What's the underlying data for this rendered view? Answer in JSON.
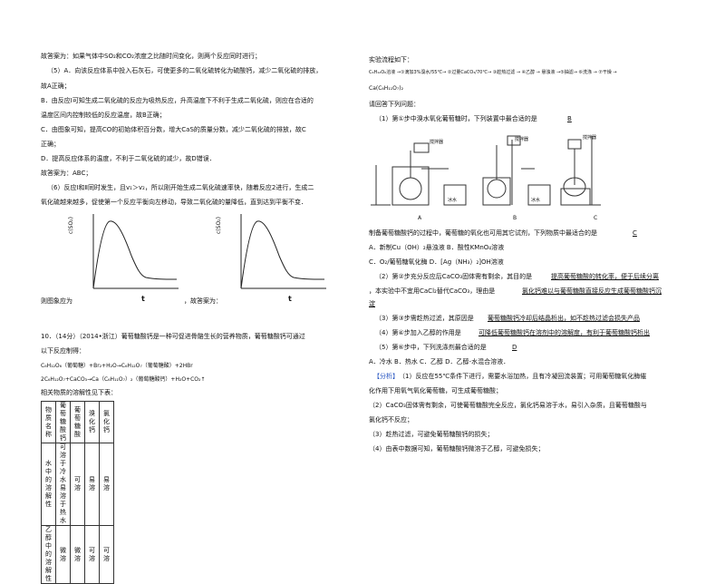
{
  "left": {
    "l1": "故答案为：如果气体中SO₂和CO₂浓度之比随时间变化，则两个反应同时进行；",
    "l2": "（5）A．向该反应体系中投入石灰石，可使更多的二氧化硫转化为硫酸钙，减少二氧化硫的排放，",
    "l3": "故A正确；",
    "l4": "B．由反应Ⅰ可知生成二氧化硫的反应为吸热反应，升高温度下不利于生成二氧化硫，则应在合适的",
    "l5": "温度区间内控制较低的反应温度，故B正确；",
    "l6": "C．由图象可知，提高CO的初始体积百分数，增大CaS的质量分数，减少二氧化硫的排放，故C",
    "l7": "正确；",
    "l8": "D．提高反应体系的温度，不利于二氧化硫的减少，故D错误．",
    "l9": "故答案为：ABC；",
    "l10": "（6）反应Ⅰ和Ⅱ同时发生，且v₁＞v₂，所以刚开始生成二氧化硫速率快，随着反应2进行，生成二",
    "l11": "氧化硫越来越多，促使第一个反应平衡向左移动，导致二氧化硫的量降低，直到达到平衡不变．",
    "graph_ylabel": "c(SO₂)",
    "graph_xlabel": "t",
    "l12a": "则图象应为",
    "l12b": "，故答案为：",
    "l13": "10．（14分）（2014•浙江）葡萄糖酸钙是一种可促进骨骼生长的营养物质，葡萄糖酸钙可通过",
    "l14": "以下反应制得：",
    "l15": "C₆H₁₂O₆（葡萄糖）+Br₂+H₂O→C₆H₁₂O₇（葡萄糖酸）+2HBr",
    "l16": "2C₆H₁₂O₇+CaCO₃→Ca（C₆H₁₁O₇）₂（葡萄糖酸钙）+H₂O+CO₂↑",
    "l17": "相关物质的溶解性见下表：",
    "table": {
      "headers": [
        "物质名称",
        "葡萄糖酸钙",
        "葡萄糖酸",
        "溴化钙",
        "氯化钙"
      ],
      "row1": [
        "水中的溶解性",
        "可溶于冷水\n易溶于热水",
        "可溶",
        "易溶",
        "易溶"
      ],
      "row2": [
        "乙醇中的溶解性",
        "微溶",
        "微溶",
        "可溶",
        "可溶"
      ]
    }
  },
  "right": {
    "r1": "实验流程如下：",
    "flow": "C₆H₁₂O₆溶液 →①滴加3%溴水/55℃→ ②过量CaCO₃/70℃→ ③趁热过滤 → ④乙醇 → 悬浊液 →⑤抽滤→ ⑥洗涤 → ⑦干燥 →",
    "flow2": "Ca(C₆H₁₁O₇)₂",
    "r2": "请回答下列问题：",
    "r3a": "（1）第①步中溴水氧化葡萄糖时，下列装置中最合适的是",
    "r3b": "B",
    "app_a": "A",
    "app_b": "B",
    "app_c": "C",
    "app_stir": "搅拌器",
    "app_water": "冰水",
    "r4a": "制备葡萄糖酸钙的过程中，葡萄糖的氧化也可用其它试剂，下列物质中最适合的是",
    "r4b": "C",
    "r5": "A．新制Cu（OH）₂悬浊液  B．酸性KMnO₄溶液",
    "r6": "C．O₂/葡萄糖氧化酶       D．[Ag（NH₃）₂]OH溶液",
    "r7a": "（2）第②步充分反应后CaCO₃固体需有剩余，其目的是",
    "r7b": "提高葡萄糖酸的转化率，便于后续分离",
    "r8a": "，本实验中不宜用CaCl₂替代CaCO₃，理由是",
    "r8b": "氯化钙难以与葡萄糖酸直接反应生成葡萄糖酸钙沉",
    "r9": "淀",
    "r10a": "（3）第③步需趁热过滤，其原因是",
    "r10b": "葡萄糖酸钙冷却后结晶析出，如不趁热过滤会损失产品",
    "r11a": "（4）第④步加入乙醇的作用是",
    "r11b": "可降低葡萄糖酸钙在溶剂中的溶解度，有利于葡萄糖酸钙析出",
    "r12a": "（5）第⑥步中，下列洗涤剂最合适的是",
    "r12b": "D",
    "r13": "A．冷水   B．热水   C．乙醇   D．乙醇-水混合溶液．",
    "r14a": "【分析】",
    "r14b": "（1）反应在55℃条件下进行，需要水浴加热，且有冷凝回流装置；可用葡萄糖氧化酶催",
    "r15": "化作用下用氧气氧化葡萄糖，可生成葡萄糖酸；",
    "r16": "（2）CaCO₃固体需有剩余，可使葡萄糖酸完全反应，氯化钙易溶于水，易引入杂质，且葡萄糖酸与",
    "r17": "氯化钙不反应；",
    "r18": "（3）趁热过滤，可避免葡萄糖酸钙的损失；",
    "r19": "（4）由表中数据可知，葡萄糖酸钙微溶于乙醇，可避免损失；"
  }
}
